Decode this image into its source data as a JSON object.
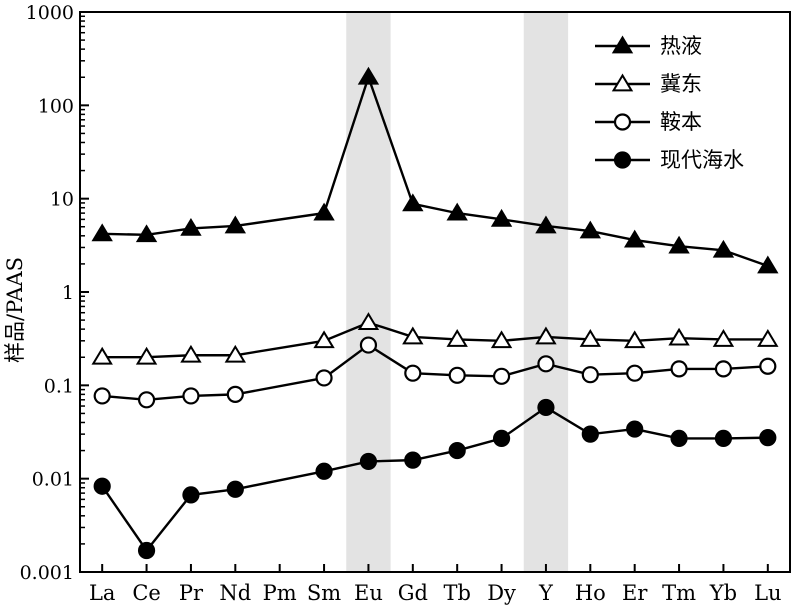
{
  "chart_data": {
    "type": "line",
    "title": "",
    "xlabel": "",
    "ylabel": "样品/PAAS",
    "yscale": "log",
    "ylim": [
      0.001,
      1000
    ],
    "yticks": [
      {
        "value": 0.001,
        "label": "0.001"
      },
      {
        "value": 0.01,
        "label": "0.01"
      },
      {
        "value": 0.1,
        "label": "0.1"
      },
      {
        "value": 1,
        "label": "1"
      },
      {
        "value": 10,
        "label": "10"
      },
      {
        "value": 100,
        "label": "100"
      },
      {
        "value": 1000,
        "label": "1000"
      }
    ],
    "categories": [
      "La",
      "Ce",
      "Pr",
      "Nd",
      "Pm",
      "Sm",
      "Eu",
      "Gd",
      "Tb",
      "Dy",
      "Y",
      "Ho",
      "Er",
      "Tm",
      "Yb",
      "Lu"
    ],
    "highlight_bands": [
      "Eu",
      "Y"
    ],
    "highlight_color": "#e3e3e3",
    "grid": false,
    "legend_position": "top-right",
    "series": [
      {
        "name": "热液",
        "marker": "filled-triangle",
        "values": [
          4.2,
          4.1,
          4.8,
          5.1,
          null,
          7.0,
          200,
          8.8,
          7.0,
          6.0,
          5.1,
          4.5,
          3.6,
          3.1,
          2.8,
          1.9
        ]
      },
      {
        "name": "冀东",
        "marker": "open-triangle",
        "values": [
          0.2,
          0.2,
          0.21,
          0.21,
          null,
          0.3,
          0.47,
          0.33,
          0.31,
          0.3,
          0.33,
          0.31,
          0.3,
          0.32,
          0.31,
          0.31
        ]
      },
      {
        "name": "鞍本",
        "marker": "open-circle",
        "values": [
          0.077,
          0.07,
          0.077,
          0.08,
          null,
          0.12,
          0.27,
          0.135,
          0.128,
          0.125,
          0.17,
          0.13,
          0.135,
          0.15,
          0.15,
          0.16
        ]
      },
      {
        "name": "现代海水",
        "marker": "filled-circle",
        "values": [
          0.0083,
          0.0017,
          0.0067,
          0.0077,
          null,
          0.012,
          0.0153,
          0.0158,
          0.02,
          0.027,
          0.058,
          0.03,
          0.034,
          0.027,
          0.027,
          0.0275
        ]
      }
    ]
  }
}
